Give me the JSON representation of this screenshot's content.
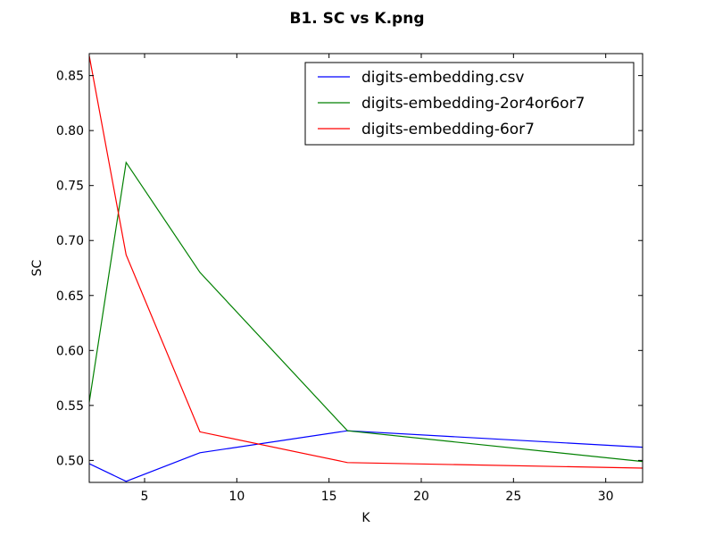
{
  "chart_data": {
    "type": "line",
    "title": "B1. SC vs K.png",
    "xlabel": "K",
    "ylabel": "SC",
    "xlim": [
      2,
      32
    ],
    "ylim": [
      0.48,
      0.87
    ],
    "xticks": [
      5,
      10,
      15,
      20,
      25,
      30
    ],
    "yticks": [
      0.5,
      0.55,
      0.6,
      0.65,
      0.7,
      0.75,
      0.8,
      0.85
    ],
    "grid": false,
    "legend_position": "top-right",
    "x": [
      2,
      4,
      8,
      16,
      32
    ],
    "series": [
      {
        "name": "digits-embedding.csv",
        "color": "#0000ff",
        "values": [
          0.497,
          0.481,
          0.507,
          0.527,
          0.512
        ]
      },
      {
        "name": "digits-embedding-2or4or6or7",
        "color": "#008000",
        "values": [
          0.553,
          0.771,
          0.671,
          0.527,
          0.499
        ]
      },
      {
        "name": "digits-embedding-6or7",
        "color": "#ff0000",
        "values": [
          0.868,
          0.687,
          0.526,
          0.498,
          0.493
        ]
      }
    ]
  }
}
